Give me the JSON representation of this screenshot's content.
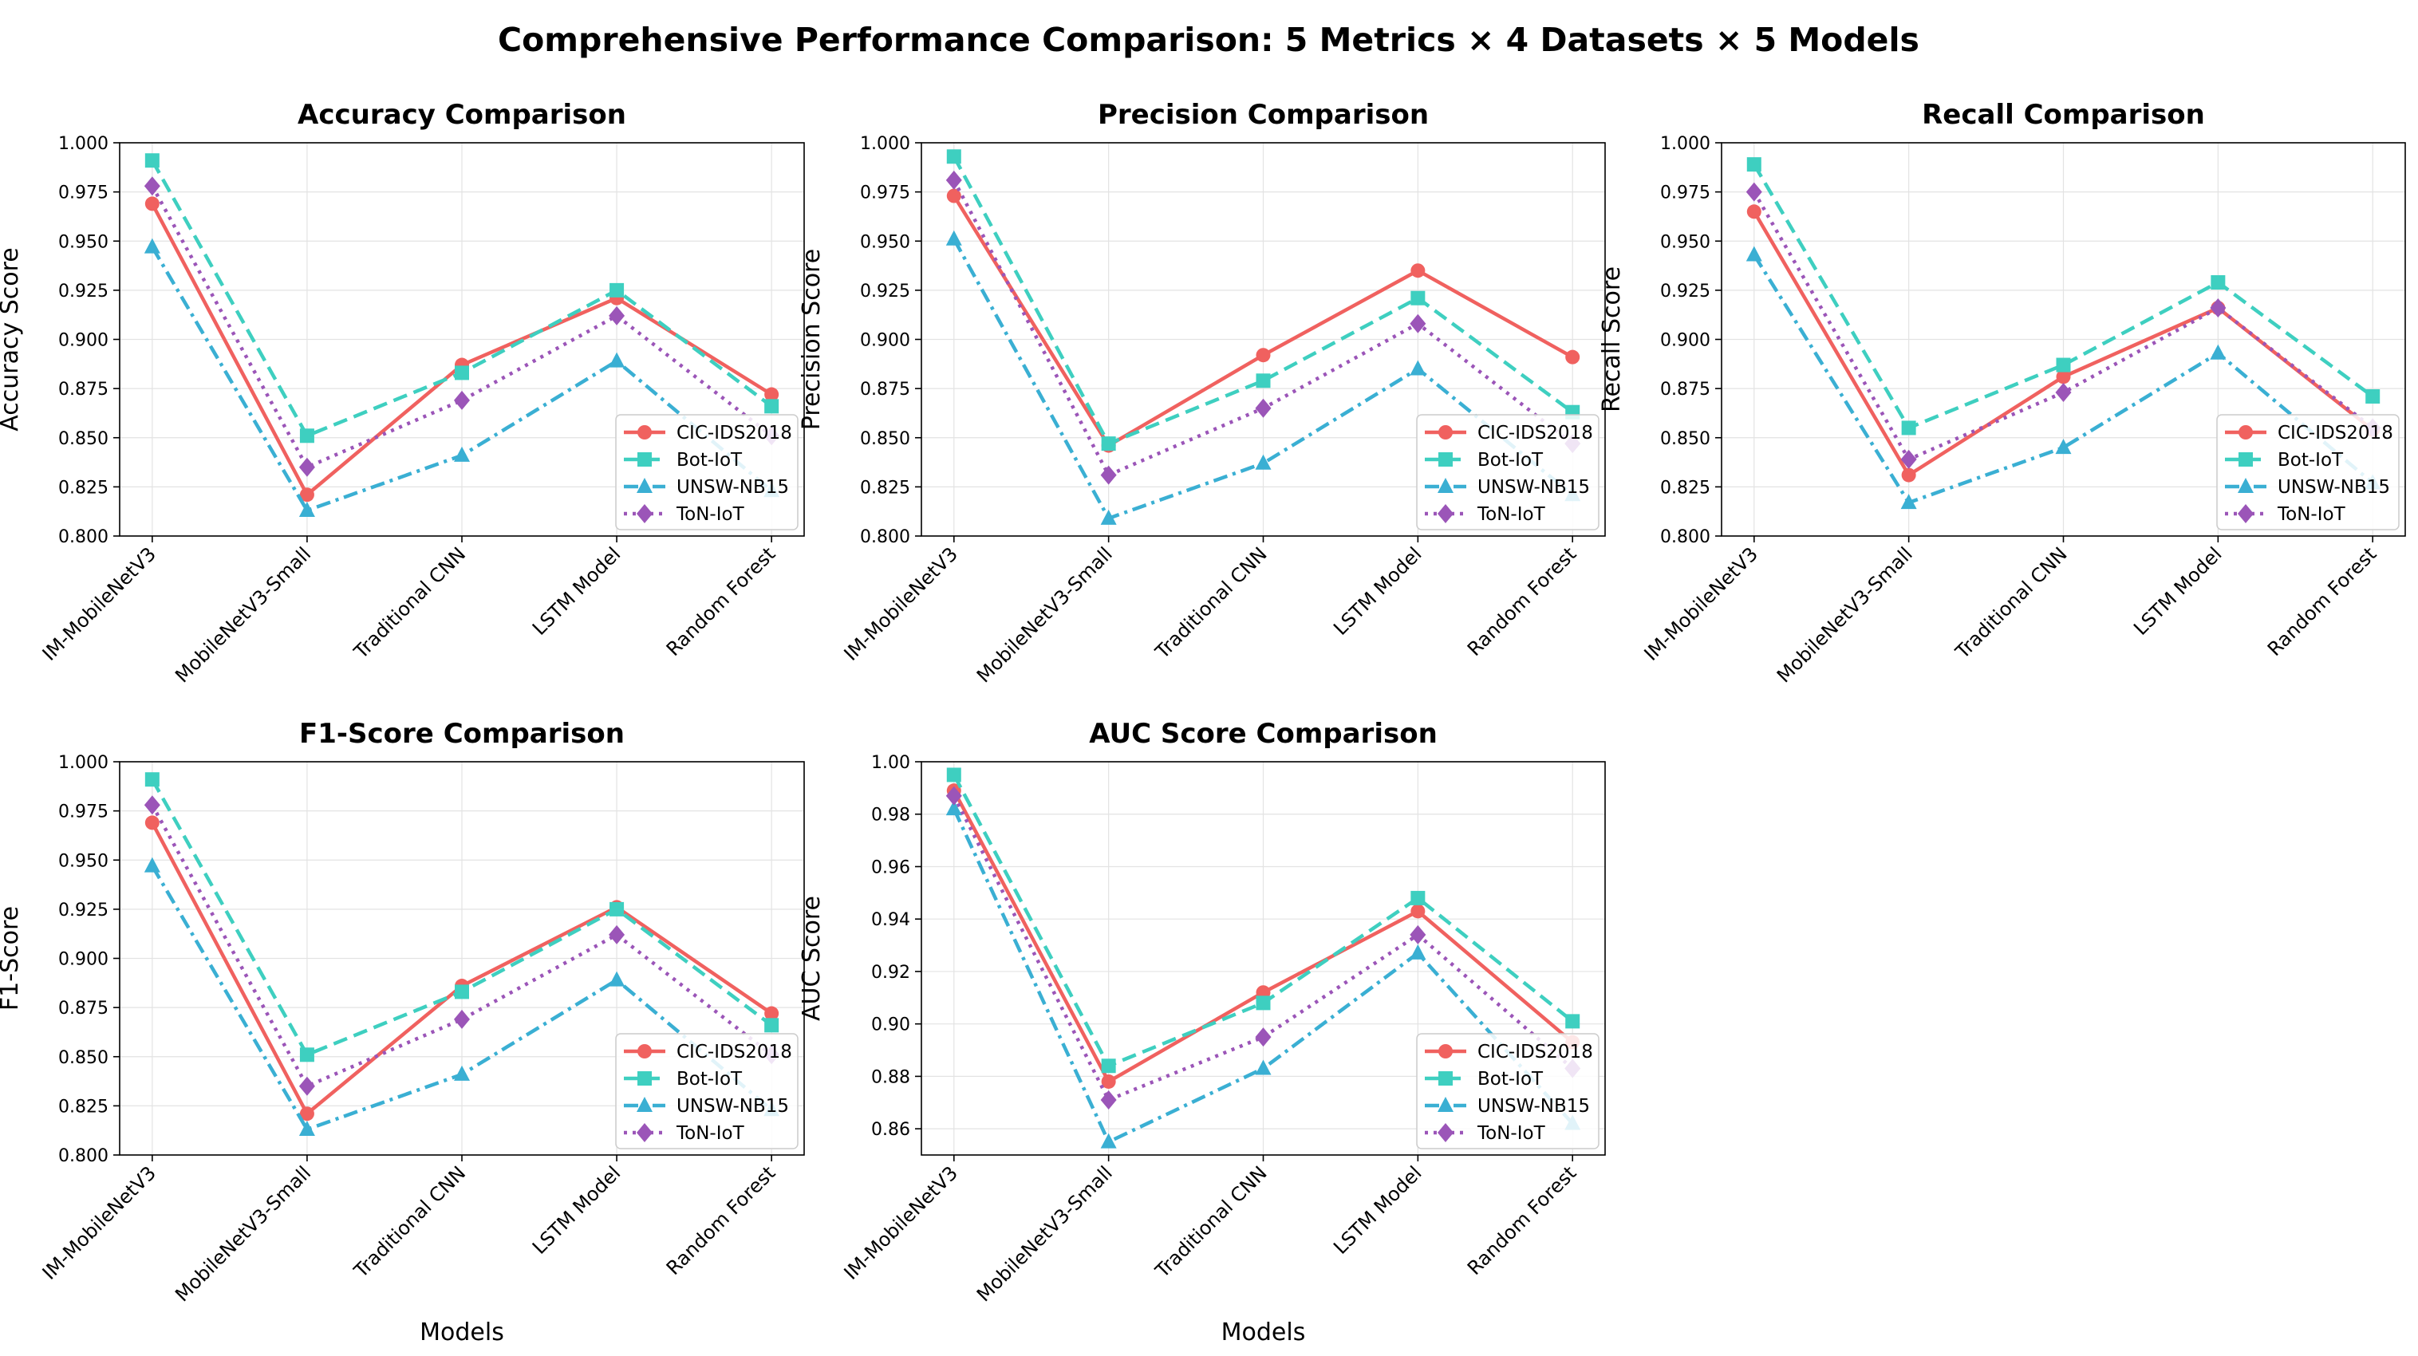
{
  "figure": {
    "title": "Comprehensive Performance Comparison: 5 Metrics × 4 Datasets × 5 Models"
  },
  "series_styles": [
    {
      "name": "CIC-IDS2018",
      "color": "#f0615f",
      "dash": "solid",
      "marker": "circle"
    },
    {
      "name": "Bot-IoT",
      "color": "#3ecfc0",
      "dash": "dashed",
      "marker": "square"
    },
    {
      "name": "UNSW-NB15",
      "color": "#3aafd3",
      "dash": "dashdot",
      "marker": "triangle"
    },
    {
      "name": "ToN-IoT",
      "color": "#9b55b8",
      "dash": "dotted",
      "marker": "diamond"
    }
  ],
  "chart_data": [
    {
      "type": "line",
      "title": "Accuracy Comparison",
      "xlabel": "",
      "ylabel": "Accuracy Score",
      "ylim": [
        0.8,
        1.0
      ],
      "yticks": [
        "0.800",
        "0.825",
        "0.850",
        "0.875",
        "0.900",
        "0.925",
        "0.950",
        "0.975",
        "1.000"
      ],
      "categories": [
        "IM-MobileNetV3",
        "MobileNetV3-Small",
        "Traditional CNN",
        "LSTM Model",
        "Random Forest"
      ],
      "grid": true,
      "legend_position": "lower-right",
      "series": [
        {
          "name": "CIC-IDS2018",
          "values": [
            0.969,
            0.821,
            0.887,
            0.921,
            0.872
          ]
        },
        {
          "name": "Bot-IoT",
          "values": [
            0.991,
            0.851,
            0.883,
            0.925,
            0.866
          ]
        },
        {
          "name": "UNSW-NB15",
          "values": [
            0.947,
            0.813,
            0.841,
            0.889,
            0.823
          ]
        },
        {
          "name": "ToN-IoT",
          "values": [
            0.978,
            0.835,
            0.869,
            0.912,
            0.851
          ]
        }
      ]
    },
    {
      "type": "line",
      "title": "Precision Comparison",
      "xlabel": "",
      "ylabel": "Precision Score",
      "ylim": [
        0.8,
        1.0
      ],
      "yticks": [
        "0.800",
        "0.825",
        "0.850",
        "0.875",
        "0.900",
        "0.925",
        "0.950",
        "0.975",
        "1.000"
      ],
      "categories": [
        "IM-MobileNetV3",
        "MobileNetV3-Small",
        "Traditional CNN",
        "LSTM Model",
        "Random Forest"
      ],
      "grid": true,
      "legend_position": "lower-right",
      "series": [
        {
          "name": "CIC-IDS2018",
          "values": [
            0.973,
            0.846,
            0.892,
            0.935,
            0.891
          ]
        },
        {
          "name": "Bot-IoT",
          "values": [
            0.993,
            0.847,
            0.879,
            0.921,
            0.863
          ]
        },
        {
          "name": "UNSW-NB15",
          "values": [
            0.951,
            0.809,
            0.837,
            0.885,
            0.821
          ]
        },
        {
          "name": "ToN-IoT",
          "values": [
            0.981,
            0.831,
            0.865,
            0.908,
            0.847
          ]
        }
      ]
    },
    {
      "type": "line",
      "title": "Recall Comparison",
      "xlabel": "",
      "ylabel": "Recall Score",
      "ylim": [
        0.8,
        1.0
      ],
      "yticks": [
        "0.800",
        "0.825",
        "0.850",
        "0.875",
        "0.900",
        "0.925",
        "0.950",
        "0.975",
        "1.000"
      ],
      "categories": [
        "IM-MobileNetV3",
        "MobileNetV3-Small",
        "Traditional CNN",
        "LSTM Model",
        "Random Forest"
      ],
      "grid": true,
      "legend_position": "lower-right",
      "series": [
        {
          "name": "CIC-IDS2018",
          "values": [
            0.965,
            0.831,
            0.881,
            0.916,
            0.854
          ]
        },
        {
          "name": "Bot-IoT",
          "values": [
            0.989,
            0.855,
            0.887,
            0.929,
            0.871
          ]
        },
        {
          "name": "UNSW-NB15",
          "values": [
            0.943,
            0.817,
            0.845,
            0.893,
            0.827
          ]
        },
        {
          "name": "ToN-IoT",
          "values": [
            0.975,
            0.839,
            0.873,
            0.916,
            0.855
          ]
        }
      ]
    },
    {
      "type": "line",
      "title": "F1-Score Comparison",
      "xlabel": "Models",
      "ylabel": "F1-Score",
      "ylim": [
        0.8,
        1.0
      ],
      "yticks": [
        "0.800",
        "0.825",
        "0.850",
        "0.875",
        "0.900",
        "0.925",
        "0.950",
        "0.975",
        "1.000"
      ],
      "categories": [
        "IM-MobileNetV3",
        "MobileNetV3-Small",
        "Traditional CNN",
        "LSTM Model",
        "Random Forest"
      ],
      "grid": true,
      "legend_position": "lower-right",
      "series": [
        {
          "name": "CIC-IDS2018",
          "values": [
            0.969,
            0.821,
            0.886,
            0.926,
            0.872
          ]
        },
        {
          "name": "Bot-IoT",
          "values": [
            0.991,
            0.851,
            0.883,
            0.925,
            0.866
          ]
        },
        {
          "name": "UNSW-NB15",
          "values": [
            0.947,
            0.813,
            0.841,
            0.889,
            0.823
          ]
        },
        {
          "name": "ToN-IoT",
          "values": [
            0.978,
            0.835,
            0.869,
            0.912,
            0.851
          ]
        }
      ]
    },
    {
      "type": "line",
      "title": "AUC Score Comparison",
      "xlabel": "Models",
      "ylabel": "AUC Score",
      "ylim": [
        0.85,
        1.0
      ],
      "yticks": [
        "0.86",
        "0.88",
        "0.90",
        "0.92",
        "0.94",
        "0.96",
        "0.98",
        "1.00"
      ],
      "categories": [
        "IM-MobileNetV3",
        "MobileNetV3-Small",
        "Traditional CNN",
        "LSTM Model",
        "Random Forest"
      ],
      "grid": true,
      "legend_position": "lower-right",
      "series": [
        {
          "name": "CIC-IDS2018",
          "values": [
            0.989,
            0.878,
            0.912,
            0.943,
            0.893
          ]
        },
        {
          "name": "Bot-IoT",
          "values": [
            0.995,
            0.884,
            0.908,
            0.948,
            0.901
          ]
        },
        {
          "name": "UNSW-NB15",
          "values": [
            0.982,
            0.855,
            0.883,
            0.927,
            0.862
          ]
        },
        {
          "name": "ToN-IoT",
          "values": [
            0.987,
            0.871,
            0.895,
            0.934,
            0.883
          ]
        }
      ]
    }
  ]
}
